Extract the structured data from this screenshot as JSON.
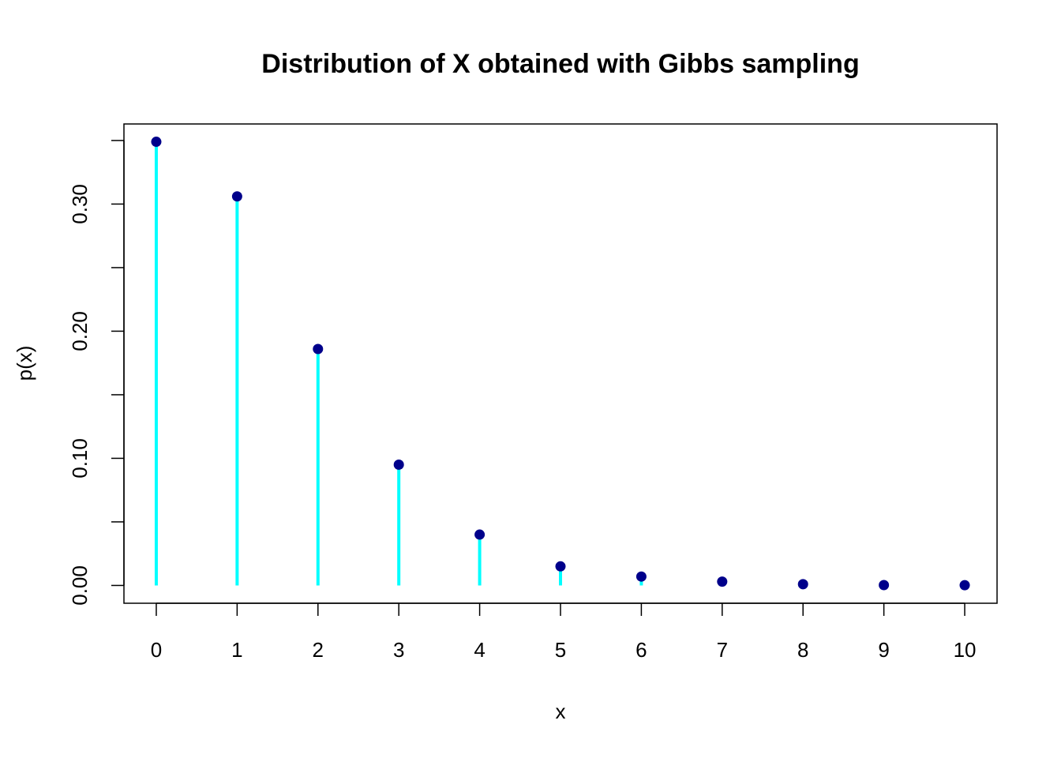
{
  "chart_data": {
    "type": "stem",
    "title": "Distribution of X obtained with Gibbs sampling",
    "xlabel": "x",
    "ylabel": "p(x)",
    "x": [
      0,
      1,
      2,
      3,
      4,
      5,
      6,
      7,
      8,
      9,
      10
    ],
    "values": [
      0.349,
      0.306,
      0.186,
      0.095,
      0.04,
      0.015,
      0.007,
      0.003,
      0.001,
      0.0003,
      0.0002
    ],
    "xlim": [
      -0.4,
      10.4
    ],
    "ylim": [
      -0.014,
      0.363
    ],
    "x_ticks": [
      "0",
      "1",
      "2",
      "3",
      "4",
      "5",
      "6",
      "7",
      "8",
      "9",
      "10"
    ],
    "y_ticks": [
      0.0,
      0.05,
      0.1,
      0.15,
      0.2,
      0.25,
      0.3,
      0.35
    ],
    "y_tick_labels": [
      "0.00",
      "",
      "0.10",
      "",
      "0.20",
      "",
      "0.30",
      ""
    ],
    "grid": false,
    "colors": {
      "stem": "#00FFFF",
      "point": "#00008B",
      "axis": "#000000"
    }
  }
}
